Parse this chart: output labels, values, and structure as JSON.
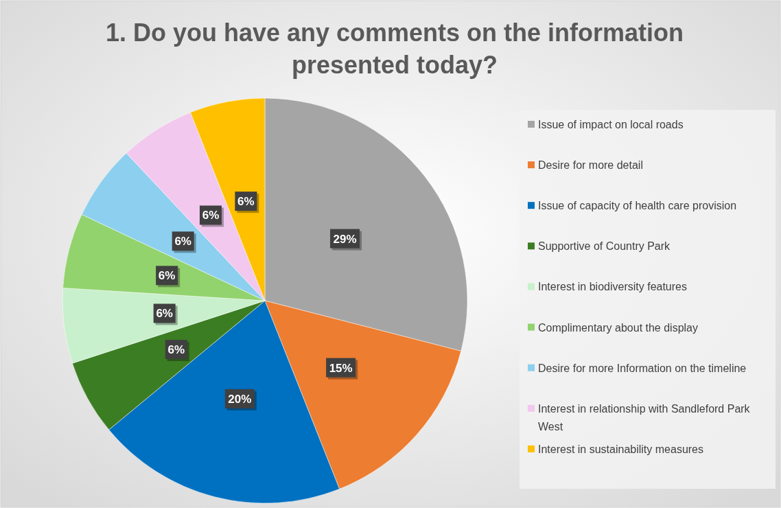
{
  "chart_data": {
    "type": "pie",
    "title": "1. Do you have any comments on the information presented today?",
    "categories": [
      "Issue of impact on local roads",
      "Desire for more detail",
      "Issue of capacity of health care provision",
      "Supportive of Country Park",
      "Interest in biodiversity features",
      "Complimentary about the display",
      "Desire for more Information on the timeline",
      "Interest in relationship with Sandleford Park West",
      "Interest in sustainability measures"
    ],
    "values": [
      29,
      15,
      20,
      6,
      6,
      6,
      6,
      6,
      6
    ],
    "value_labels": [
      "29%",
      "15%",
      "20%",
      "6%",
      "6%",
      "6%",
      "6%",
      "6%",
      "6%"
    ],
    "colors": [
      "#a5a5a5",
      "#ed7d31",
      "#0070c0",
      "#3b7d23",
      "#c8f0cc",
      "#92d36e",
      "#8dcfef",
      "#f2c8ee",
      "#ffc000"
    ],
    "legend": "right"
  }
}
